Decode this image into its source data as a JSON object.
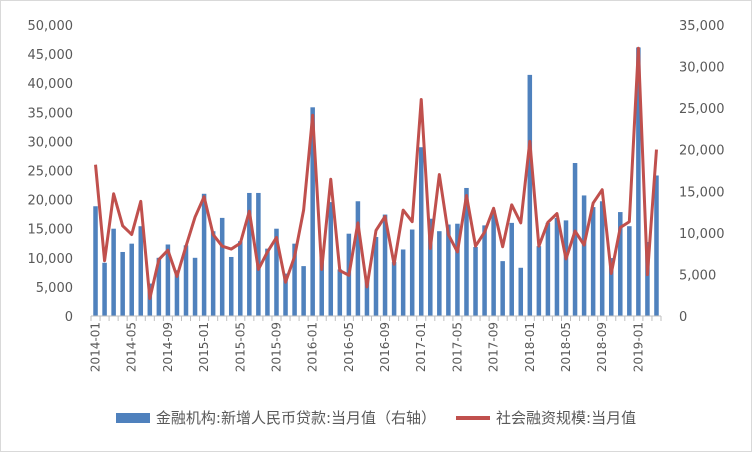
{
  "chart_data": {
    "type": "bar+line",
    "x": [
      "2014-01",
      "2014-02",
      "2014-03",
      "2014-04",
      "2014-05",
      "2014-06",
      "2014-07",
      "2014-08",
      "2014-09",
      "2014-10",
      "2014-11",
      "2014-12",
      "2015-01",
      "2015-02",
      "2015-03",
      "2015-04",
      "2015-05",
      "2015-06",
      "2015-07",
      "2015-08",
      "2015-09",
      "2015-10",
      "2015-11",
      "2015-12",
      "2016-01",
      "2016-02",
      "2016-03",
      "2016-04",
      "2016-05",
      "2016-06",
      "2016-07",
      "2016-08",
      "2016-09",
      "2016-10",
      "2016-11",
      "2016-12",
      "2017-01",
      "2017-02",
      "2017-03",
      "2017-04",
      "2017-05",
      "2017-06",
      "2017-07",
      "2017-08",
      "2017-09",
      "2017-10",
      "2017-11",
      "2017-12",
      "2018-01",
      "2018-02",
      "2018-03",
      "2018-04",
      "2018-05",
      "2018-06",
      "2018-07",
      "2018-08",
      "2018-09",
      "2018-10",
      "2018-11",
      "2018-12",
      "2019-01",
      "2019-02",
      "2019-03"
    ],
    "x_tick_labels": [
      "2014-01",
      "2014-05",
      "2014-09",
      "2015-01",
      "2015-05",
      "2015-09",
      "2016-01",
      "2016-05",
      "2016-09",
      "2017-01",
      "2017-05",
      "2017-09",
      "2018-01",
      "2018-05",
      "2018-09",
      "2019-01"
    ],
    "series": [
      {
        "name": "金融机构:新增人民币贷款:当月值（右轴）",
        "type": "bar",
        "axis": "right",
        "color": "#4f81bd",
        "values": [
          13200,
          6400,
          10500,
          7700,
          8700,
          10800,
          3900,
          7000,
          8600,
          5500,
          8500,
          7000,
          14700,
          10200,
          11800,
          7100,
          9000,
          14800,
          14800,
          8100,
          10500,
          5100,
          8700,
          6000,
          25100,
          7300,
          13700,
          5600,
          9900,
          13800,
          4600,
          9500,
          12200,
          6500,
          8000,
          10400,
          20300,
          11700,
          10200,
          11000,
          11100,
          15400,
          8300,
          10900,
          12700,
          6600,
          11200,
          5800,
          29000,
          8400,
          11200,
          11800,
          11500,
          18400,
          14500,
          13100,
          13800,
          6970,
          12500,
          10800,
          32300,
          8900,
          16900
        ]
      },
      {
        "name": "社会融资规模:当月值",
        "type": "line",
        "axis": "left",
        "color": "#c0504d",
        "values": [
          26000,
          9500,
          21000,
          15500,
          14000,
          19700,
          3000,
          9700,
          11300,
          6800,
          12000,
          17000,
          20500,
          14000,
          12000,
          11500,
          12500,
          18000,
          8000,
          11000,
          13500,
          5800,
          10200,
          18200,
          34500,
          8000,
          23500,
          7800,
          7000,
          16000,
          5000,
          14700,
          17100,
          8900,
          18200,
          16200,
          37200,
          11600,
          24300,
          14000,
          11000,
          20700,
          12000,
          14400,
          18500,
          11900,
          19100,
          16000,
          30000,
          12000,
          16100,
          17600,
          9800,
          14600,
          12200,
          19400,
          21700,
          7300,
          15200,
          16200,
          46000,
          7100,
          28600
        ]
      }
    ],
    "ylim_left": [
      0,
      50000
    ],
    "ylim_right": [
      0,
      35000
    ],
    "yticks_left": [
      "0",
      "5,000",
      "10,000",
      "15,000",
      "20,000",
      "25,000",
      "30,000",
      "35,000",
      "40,000",
      "45,000",
      "50,000"
    ],
    "yticks_right": [
      "0",
      "5,000",
      "10,000",
      "15,000",
      "20,000",
      "25,000",
      "30,000",
      "35,000"
    ],
    "grid": false,
    "legend_position": "bottom"
  },
  "legend": {
    "bar_label": "金融机构:新增人民币贷款:当月值（右轴）",
    "line_label": "社会融资规模:当月值"
  }
}
